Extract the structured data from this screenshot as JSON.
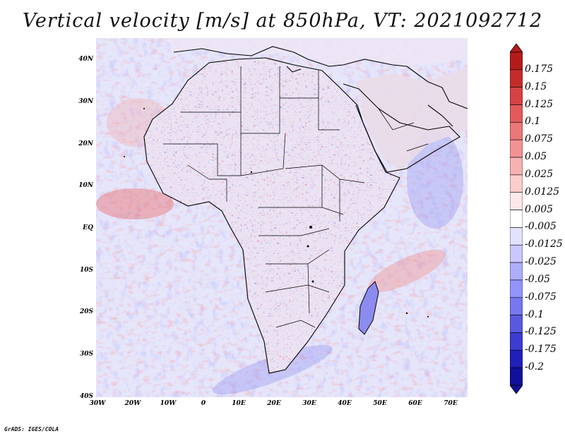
{
  "title": "Vertical velocity [m/s] at 850hPa, VT: 2021092712",
  "credit": "GrADS: IGES/COLA",
  "lat_labels": [
    "40N",
    "30N",
    "20N",
    "10N",
    "EQ",
    "10S",
    "20S",
    "30S",
    "40S"
  ],
  "lon_labels": [
    "30W",
    "20W",
    "10W",
    "0",
    "10E",
    "20E",
    "30E",
    "40E",
    "50E",
    "60E",
    "70E"
  ],
  "colorbar": {
    "levels": [
      "0.175",
      "0.15",
      "0.125",
      "0.1",
      "0.075",
      "0.05",
      "0.025",
      "0.0125",
      "0.005",
      "-0.005",
      "-0.0125",
      "-0.025",
      "-0.05",
      "-0.075",
      "-0.1",
      "-0.125",
      "-0.175",
      "-0.2"
    ],
    "colors": [
      "#b31b1b",
      "#c42c2c",
      "#d64242",
      "#e25a5a",
      "#ec7777",
      "#f29393",
      "#f7b1b1",
      "#fbcdcd",
      "#ffe8e8",
      "#ffffff",
      "#e2e2ff",
      "#c8c8ff",
      "#aeaeff",
      "#9494ff",
      "#7777f0",
      "#5a5ae0",
      "#3c3cd0",
      "#2020b8",
      "#10109a"
    ]
  },
  "map": {
    "ocean_color": "#e6e6fb",
    "land_color": "#e8e4f6",
    "coast_color": "#000000"
  }
}
